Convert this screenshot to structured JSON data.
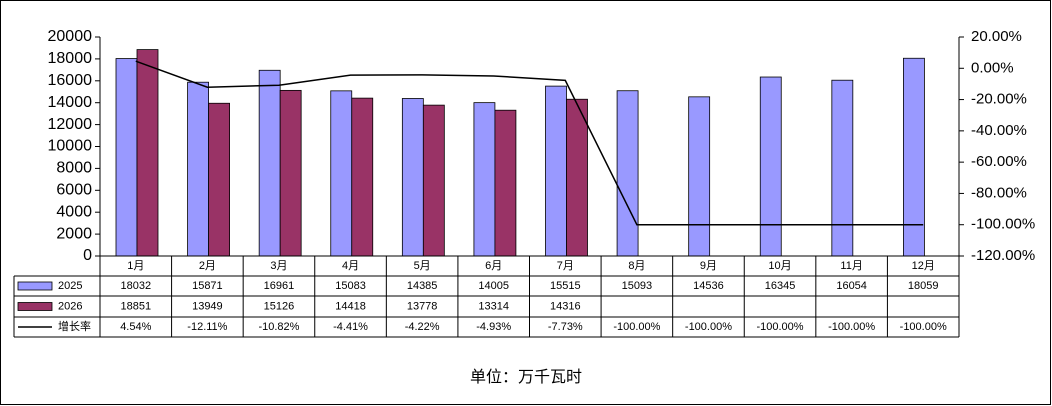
{
  "chart_data": {
    "type": "bar",
    "categories": [
      "1月",
      "2月",
      "3月",
      "4月",
      "5月",
      "6月",
      "7月",
      "8月",
      "9月",
      "10月",
      "11月",
      "12月"
    ],
    "series": [
      {
        "name": "2025",
        "color": "#9999ff",
        "values": [
          18032,
          15871,
          16961,
          15083,
          14385,
          14005,
          15515,
          15093,
          14536,
          16345,
          16054,
          18059
        ]
      },
      {
        "name": "2026",
        "color": "#993366",
        "values": [
          18851,
          13949,
          15126,
          14418,
          13778,
          13314,
          14316,
          null,
          null,
          null,
          null,
          null
        ]
      },
      {
        "name": "增长率",
        "type": "line",
        "axis": "y2",
        "color": "#000000",
        "values": [
          4.54,
          -12.11,
          -10.82,
          -4.41,
          -4.22,
          -4.93,
          -7.73,
          -100,
          -100,
          -100,
          -100,
          -100
        ],
        "value_labels": [
          "4.54%",
          "-12.11%",
          "-10.82%",
          "-4.41%",
          "-4.22%",
          "-4.93%",
          "-7.73%",
          "-100.00%",
          "-100.00%",
          "-100.00%",
          "-100.00%",
          "-100.00%"
        ]
      }
    ],
    "ylim": [
      0,
      20000
    ],
    "yticks": [
      0,
      2000,
      4000,
      6000,
      8000,
      10000,
      12000,
      14000,
      16000,
      18000,
      20000
    ],
    "y2lim": [
      -120,
      20
    ],
    "y2ticks": [
      {
        "value": 20,
        "label": "20.00%"
      },
      {
        "value": 0,
        "label": "0.00%"
      },
      {
        "value": -20,
        "label": "-20.00%"
      },
      {
        "value": -40,
        "label": "-40.00%"
      },
      {
        "value": -60,
        "label": "-60.00%"
      },
      {
        "value": -80,
        "label": "-80.00%"
      },
      {
        "value": -100,
        "label": "-100.00%"
      },
      {
        "value": -120,
        "label": "-120.00%"
      }
    ],
    "grid": false,
    "footnote": "单位：万千瓦时"
  }
}
